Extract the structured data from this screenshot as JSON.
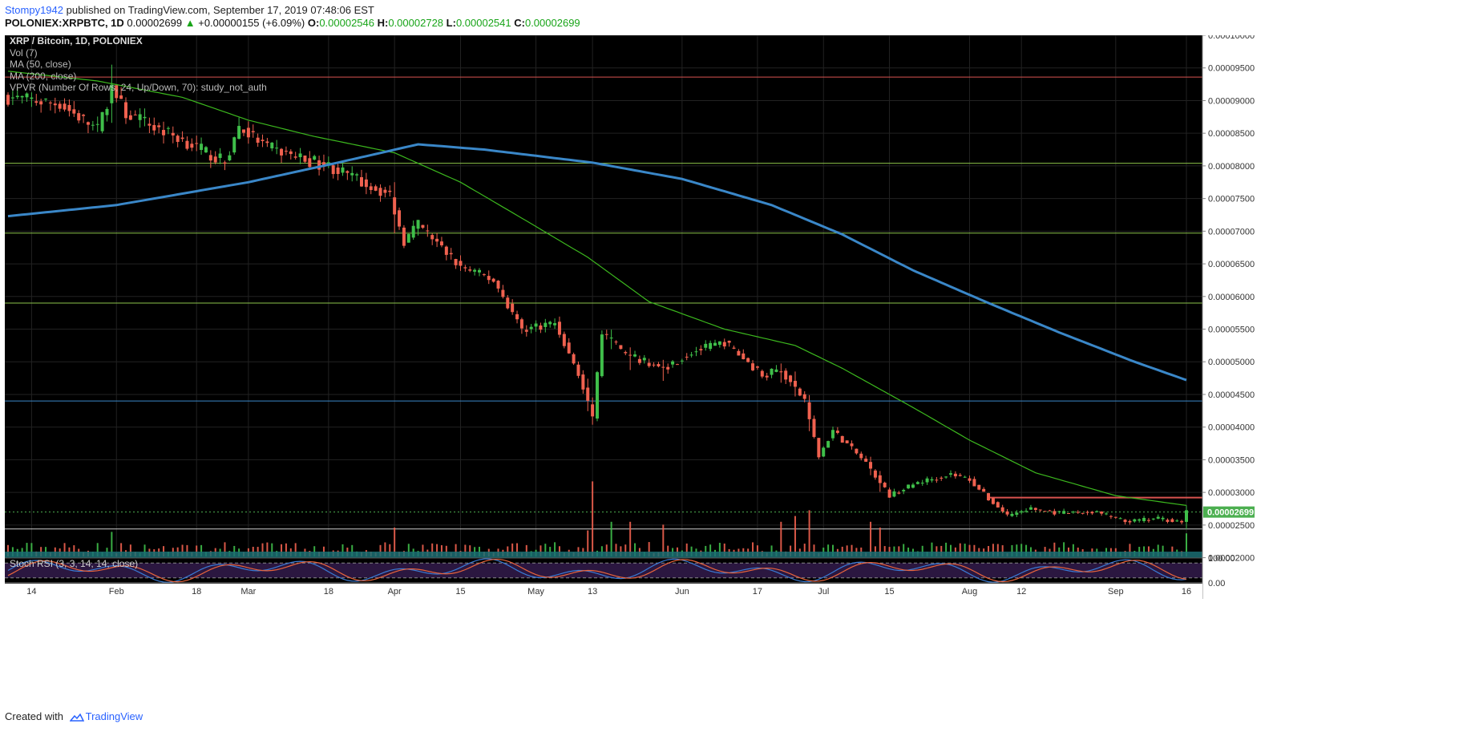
{
  "header": {
    "publisher": "Stompy1942",
    "published_text": "published on TradingView.com, September 17, 2019 07:48:06 EST",
    "symbol": "POLONIEX:XRPBTC, 1D",
    "last": "0.00002699",
    "change": "+0.00000155 (+6.09%)",
    "open_label": "O:",
    "open": "0.00002546",
    "high_label": "H:",
    "high": "0.00002728",
    "low_label": "L:",
    "low": "0.00002541",
    "close_label": "C:",
    "close": "0.00002699"
  },
  "legend": {
    "title": "XRP / Bitcoin, 1D, POLONIEX",
    "vol": "Vol (7)",
    "ma50": "MA (50, close)",
    "ma200": "MA (200, close)",
    "vpvr": "VPVR (Number Of Rows, 24, Up/Down, 70): study_not_auth"
  },
  "footer": {
    "created_with": "Created with",
    "brand": "TradingView"
  },
  "colors": {
    "background": "#000000",
    "up": "#3fbf4a",
    "down": "#f0614f",
    "ma50": "#3cb81e",
    "ma200": "#3a87c8",
    "price_label_bg": "#4caf50",
    "rsi_k": "#3a7bd5",
    "rsi_d": "#e8643c",
    "rsi_band": "#2b1740"
  },
  "chart_data": {
    "type": "candlestick",
    "title": "XRP / Bitcoin, 1D, POLONIEX",
    "y_axis": {
      "range": [
        1.995e-05,
        0.0001
      ],
      "ticks": [
        "0.00010000",
        "0.00009500",
        "0.00009000",
        "0.00008500",
        "0.00008000",
        "0.00007500",
        "0.00007000",
        "0.00006500",
        "0.00006000",
        "0.00005500",
        "0.00005000",
        "0.00004500",
        "0.00004000",
        "0.00003500",
        "0.00003000",
        "0.00002500",
        "0.00002000"
      ]
    },
    "x_axis": {
      "start": "2019-01-09",
      "end": "2019-09-16",
      "ticks": [
        {
          "label": "14",
          "date": "2019-01-14"
        },
        {
          "label": "Feb",
          "date": "2019-02-01"
        },
        {
          "label": "18",
          "date": "2019-02-18"
        },
        {
          "label": "Mar",
          "date": "2019-03-01"
        },
        {
          "label": "18",
          "date": "2019-03-18"
        },
        {
          "label": "Apr",
          "date": "2019-04-01"
        },
        {
          "label": "15",
          "date": "2019-04-15"
        },
        {
          "label": "May",
          "date": "2019-05-01"
        },
        {
          "label": "13",
          "date": "2019-05-13"
        },
        {
          "label": "Jun",
          "date": "2019-06-01"
        },
        {
          "label": "17",
          "date": "2019-06-17"
        },
        {
          "label": "Jul",
          "date": "2019-07-01"
        },
        {
          "label": "15",
          "date": "2019-07-15"
        },
        {
          "label": "Aug",
          "date": "2019-08-01"
        },
        {
          "label": "12",
          "date": "2019-08-12"
        },
        {
          "label": "Sep",
          "date": "2019-09-01"
        },
        {
          "label": "16",
          "date": "2019-09-16"
        }
      ]
    },
    "price_keypoints": [
      [
        "2019-01-09",
        9.05e-05
      ],
      [
        "2019-01-20",
        8.95e-05
      ],
      [
        "2019-01-28",
        8.55e-05
      ],
      [
        "2019-01-31",
        9.2e-05
      ],
      [
        "2019-02-03",
        8.8e-05
      ],
      [
        "2019-02-15",
        8.4e-05
      ],
      [
        "2019-02-24",
        8.05e-05
      ],
      [
        "2019-02-27",
        8.6e-05
      ],
      [
        "2019-03-05",
        8.28e-05
      ],
      [
        "2019-03-14",
        8.08e-05
      ],
      [
        "2019-03-18",
        8e-05
      ],
      [
        "2019-03-31",
        7.55e-05
      ],
      [
        "2019-04-03",
        6.85e-05
      ],
      [
        "2019-04-06",
        7.1e-05
      ],
      [
        "2019-04-15",
        6.45e-05
      ],
      [
        "2019-04-22",
        6.25e-05
      ],
      [
        "2019-04-28",
        5.5e-05
      ],
      [
        "2019-05-05",
        5.6e-05
      ],
      [
        "2019-05-10",
        4.8e-05
      ],
      [
        "2019-05-13",
        4.15e-05
      ],
      [
        "2019-05-15",
        5.45e-05
      ],
      [
        "2019-05-20",
        5.1e-05
      ],
      [
        "2019-05-28",
        4.9e-05
      ],
      [
        "2019-06-03",
        5.15e-05
      ],
      [
        "2019-06-10",
        5.3e-05
      ],
      [
        "2019-06-18",
        4.8e-05
      ],
      [
        "2019-06-22",
        4.88e-05
      ],
      [
        "2019-06-27",
        4.4e-05
      ],
      [
        "2019-06-30",
        3.55e-05
      ],
      [
        "2019-07-03",
        3.95e-05
      ],
      [
        "2019-07-10",
        3.45e-05
      ],
      [
        "2019-07-15",
        2.95e-05
      ],
      [
        "2019-07-21",
        3.15e-05
      ],
      [
        "2019-07-28",
        3.28e-05
      ],
      [
        "2019-08-01",
        3.2e-05
      ],
      [
        "2019-08-05",
        2.9e-05
      ],
      [
        "2019-08-09",
        2.65e-05
      ],
      [
        "2019-08-14",
        2.75e-05
      ],
      [
        "2019-08-20",
        2.68e-05
      ],
      [
        "2019-08-28",
        2.7e-05
      ],
      [
        "2019-09-03",
        2.55e-05
      ],
      [
        "2019-09-10",
        2.6e-05
      ],
      [
        "2019-09-15",
        2.55e-05
      ],
      [
        "2019-09-16",
        2.699e-05
      ]
    ],
    "volume_spikes": [
      [
        "2019-01-31",
        0.85
      ],
      [
        "2019-04-01",
        1.0
      ],
      [
        "2019-05-12",
        0.9
      ],
      [
        "2019-05-13",
        2.6
      ],
      [
        "2019-05-17",
        1.2
      ],
      [
        "2019-05-21",
        1.2
      ],
      [
        "2019-05-28",
        1.1
      ],
      [
        "2019-06-22",
        1.2
      ],
      [
        "2019-06-25",
        1.4
      ],
      [
        "2019-06-28",
        1.6
      ],
      [
        "2019-07-11",
        1.2
      ],
      [
        "2019-07-13",
        1.0
      ],
      [
        "2019-09-16",
        0.8
      ]
    ],
    "ma50_keypoints": [
      [
        "2019-01-09",
        9.45e-05
      ],
      [
        "2019-01-28",
        9.3e-05
      ],
      [
        "2019-02-15",
        9.05e-05
      ],
      [
        "2019-03-01",
        8.7e-05
      ],
      [
        "2019-03-15",
        8.45e-05
      ],
      [
        "2019-04-01",
        8.2e-05
      ],
      [
        "2019-04-15",
        7.75e-05
      ],
      [
        "2019-04-28",
        7.2e-05
      ],
      [
        "2019-05-12",
        6.6e-05
      ],
      [
        "2019-05-25",
        5.92e-05
      ],
      [
        "2019-06-10",
        5.5e-05
      ],
      [
        "2019-06-25",
        5.25e-05
      ],
      [
        "2019-07-05",
        4.9e-05
      ],
      [
        "2019-07-20",
        4.3e-05
      ],
      [
        "2019-08-01",
        3.8e-05
      ],
      [
        "2019-08-15",
        3.3e-05
      ],
      [
        "2019-09-01",
        2.95e-05
      ],
      [
        "2019-09-16",
        2.8e-05
      ]
    ],
    "ma200_keypoints": [
      [
        "2019-01-09",
        7.23e-05
      ],
      [
        "2019-02-01",
        7.4e-05
      ],
      [
        "2019-03-01",
        7.75e-05
      ],
      [
        "2019-03-20",
        8.05e-05
      ],
      [
        "2019-04-06",
        8.33e-05
      ],
      [
        "2019-04-20",
        8.25e-05
      ],
      [
        "2019-05-13",
        8.05e-05
      ],
      [
        "2019-06-01",
        7.8e-05
      ],
      [
        "2019-06-20",
        7.4e-05
      ],
      [
        "2019-07-05",
        6.95e-05
      ],
      [
        "2019-07-20",
        6.4e-05
      ],
      [
        "2019-08-05",
        5.9e-05
      ],
      [
        "2019-08-20",
        5.45e-05
      ],
      [
        "2019-09-05",
        5e-05
      ],
      [
        "2019-09-16",
        4.72e-05
      ]
    ],
    "horizontal_levels": [
      {
        "value": 9.36e-05,
        "color": "#d9534f"
      },
      {
        "value": 8.04e-05,
        "color": "#8bc34a"
      },
      {
        "value": 6.97e-05,
        "color": "#8bc34a"
      },
      {
        "value": 5.9e-05,
        "color": "#8bc34a"
      },
      {
        "value": 4.4e-05,
        "color": "#3a87c8"
      },
      {
        "value": 2.92e-05,
        "color": "#d9534f",
        "from": "2019-08-05"
      },
      {
        "value": 2.44e-05,
        "color": "#cccccc"
      }
    ],
    "last_price": {
      "label": "0.00002699",
      "value": 2.699e-05
    },
    "stoch_rsi": {
      "label": "Stoch RSI (3, 3, 14, 14, close)",
      "ticks": [
        "100.00",
        "0.00"
      ],
      "upper": 80,
      "lower": 20
    }
  }
}
